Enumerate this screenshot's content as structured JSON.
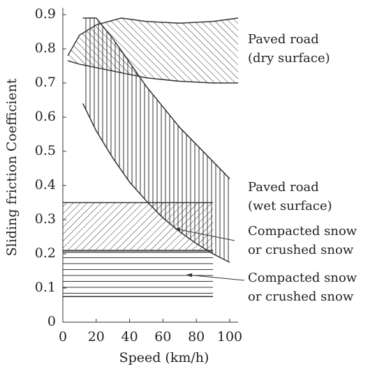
{
  "chart_data": {
    "type": "band",
    "xlabel": "Speed (km/h)",
    "ylabel": "Sliding friction Coefficient",
    "xlim": [
      0,
      105
    ],
    "ylim": [
      0,
      0.92
    ],
    "xticks": [
      0,
      20,
      40,
      60,
      80,
      100
    ],
    "yticks": [
      0,
      0.1,
      0.2,
      0.3,
      0.4,
      0.5,
      0.6,
      0.7,
      0.8,
      0.9
    ],
    "color": "#333333",
    "series": [
      {
        "label": [
          "Paved road",
          "(dry surface)"
        ],
        "hatch": "diagonal-left",
        "x": [
          3,
          10,
          20,
          35,
          50,
          70,
          90,
          105
        ],
        "lower": [
          0.765,
          0.755,
          0.745,
          0.73,
          0.715,
          0.705,
          0.7,
          0.7
        ],
        "upper": [
          0.78,
          0.84,
          0.87,
          0.89,
          0.88,
          0.875,
          0.88,
          0.89
        ]
      },
      {
        "label": [
          "Paved road",
          "(wet surface)"
        ],
        "hatch": "vertical",
        "x": [
          12,
          20,
          30,
          40,
          50,
          60,
          70,
          80,
          90,
          100
        ],
        "lower": [
          0.64,
          0.56,
          0.48,
          0.41,
          0.355,
          0.305,
          0.265,
          0.23,
          0.2,
          0.175
        ],
        "upper": [
          0.89,
          0.89,
          0.83,
          0.76,
          0.69,
          0.63,
          0.57,
          0.52,
          0.47,
          0.42
        ]
      },
      {
        "label": [
          "Compacted snow",
          "or crushed snow"
        ],
        "hatch": "diagonal-right",
        "x": [
          0,
          90
        ],
        "lower": [
          0.21,
          0.21
        ],
        "upper": [
          0.35,
          0.35
        ]
      },
      {
        "label": [
          "Compacted snow",
          "or crushed snow"
        ],
        "hatch": "horizontal",
        "x": [
          0,
          90
        ],
        "lower": [
          0.075,
          0.075
        ],
        "upper": [
          0.205,
          0.205
        ]
      }
    ]
  }
}
